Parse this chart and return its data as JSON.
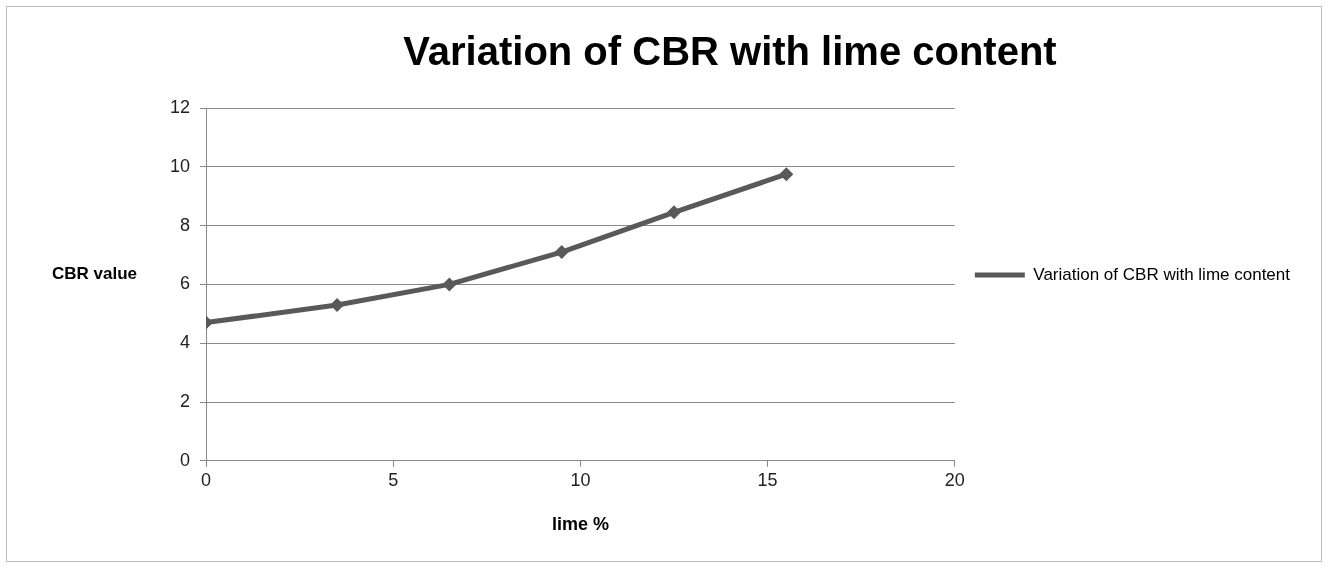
{
  "chart_data": {
    "type": "line",
    "title": "Variation of CBR with lime content",
    "xlabel": "lime %",
    "ylabel": "CBR value",
    "x": [
      0,
      3.5,
      6.5,
      9.5,
      12.5,
      15.5
    ],
    "series": [
      {
        "name": "Variation of CBR with lime content",
        "color": "#595959",
        "values": [
          4.7,
          5.3,
          6.0,
          7.1,
          8.45,
          9.75
        ]
      }
    ],
    "xlim": [
      0,
      20
    ],
    "xticks": [
      0,
      5,
      10,
      15,
      20
    ],
    "ylim": [
      0,
      12
    ],
    "yticks": [
      0,
      2,
      4,
      6,
      8,
      10,
      12
    ],
    "grid": "y",
    "legend": "right",
    "marker": "diamond",
    "line_style": "solid"
  }
}
